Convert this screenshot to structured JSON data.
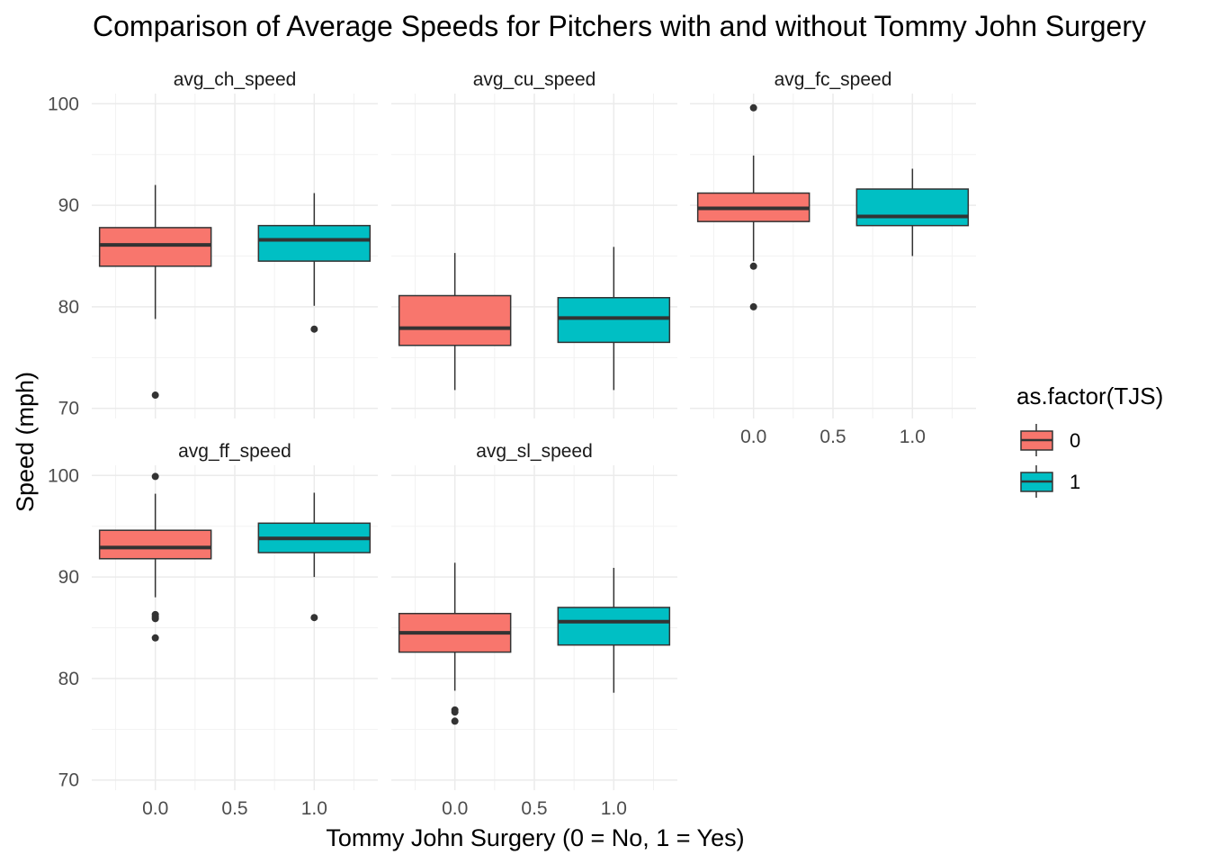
{
  "chart_data": {
    "type": "boxplot",
    "title": "Comparison of Average Speeds for Pitchers with and without Tommy John Surgery",
    "xlabel": "Tommy John Surgery (0 = No, 1 = Yes)",
    "ylabel": "Speed (mph)",
    "xlim": [
      -0.4,
      1.4
    ],
    "ylim": [
      69,
      101
    ],
    "x_ticks": [
      0.0,
      0.5,
      1.0
    ],
    "x_tick_labels": [
      "0.0",
      "0.5",
      "1.0"
    ],
    "y_ticks": [
      70,
      80,
      90,
      100
    ],
    "y_tick_labels": [
      "70",
      "80",
      "90",
      "100"
    ],
    "grid": true,
    "legend": {
      "title": "as.factor(TJS)",
      "position": "right",
      "entries": [
        {
          "label": "0",
          "color": "#F8766D"
        },
        {
          "label": "1",
          "color": "#00BFC4"
        }
      ]
    },
    "panels": [
      {
        "name": "avg_ch_speed",
        "boxes": [
          {
            "group": "0",
            "x": 0,
            "whisker_low": 78.8,
            "q1": 84.0,
            "median": 86.1,
            "q3": 87.8,
            "whisker_high": 92.0,
            "outliers": [
              71.3
            ]
          },
          {
            "group": "1",
            "x": 1,
            "whisker_low": 80.1,
            "q1": 84.5,
            "median": 86.6,
            "q3": 88.0,
            "whisker_high": 91.2,
            "outliers": [
              77.8
            ]
          }
        ]
      },
      {
        "name": "avg_cu_speed",
        "boxes": [
          {
            "group": "0",
            "x": 0,
            "whisker_low": 71.8,
            "q1": 76.2,
            "median": 77.9,
            "q3": 81.1,
            "whisker_high": 85.3,
            "outliers": []
          },
          {
            "group": "1",
            "x": 1,
            "whisker_low": 71.8,
            "q1": 76.5,
            "median": 78.9,
            "q3": 80.9,
            "whisker_high": 85.9,
            "outliers": []
          }
        ]
      },
      {
        "name": "avg_fc_speed",
        "boxes": [
          {
            "group": "0",
            "x": 0,
            "whisker_low": 84.5,
            "q1": 88.4,
            "median": 89.7,
            "q3": 91.2,
            "whisker_high": 94.9,
            "outliers": [
              99.6,
              84.0,
              80.0
            ]
          },
          {
            "group": "1",
            "x": 1,
            "whisker_low": 85.0,
            "q1": 88.0,
            "median": 88.9,
            "q3": 91.6,
            "whisker_high": 93.6,
            "outliers": []
          }
        ]
      },
      {
        "name": "avg_ff_speed",
        "boxes": [
          {
            "group": "0",
            "x": 0,
            "whisker_low": 88.0,
            "q1": 91.8,
            "median": 92.9,
            "q3": 94.6,
            "whisker_high": 98.2,
            "outliers": [
              99.9,
              86.3,
              86.1,
              85.9,
              84.0
            ]
          },
          {
            "group": "1",
            "x": 1,
            "whisker_low": 90.0,
            "q1": 92.4,
            "median": 93.8,
            "q3": 95.3,
            "whisker_high": 98.3,
            "outliers": [
              86.0
            ]
          }
        ]
      },
      {
        "name": "avg_sl_speed",
        "boxes": [
          {
            "group": "0",
            "x": 0,
            "whisker_low": 78.8,
            "q1": 82.6,
            "median": 84.5,
            "q3": 86.4,
            "whisker_high": 91.4,
            "outliers": [
              76.9,
              76.7,
              75.8
            ]
          },
          {
            "group": "1",
            "x": 1,
            "whisker_low": 78.6,
            "q1": 83.3,
            "median": 85.6,
            "q3": 87.0,
            "whisker_high": 90.9,
            "outliers": []
          }
        ]
      }
    ]
  }
}
